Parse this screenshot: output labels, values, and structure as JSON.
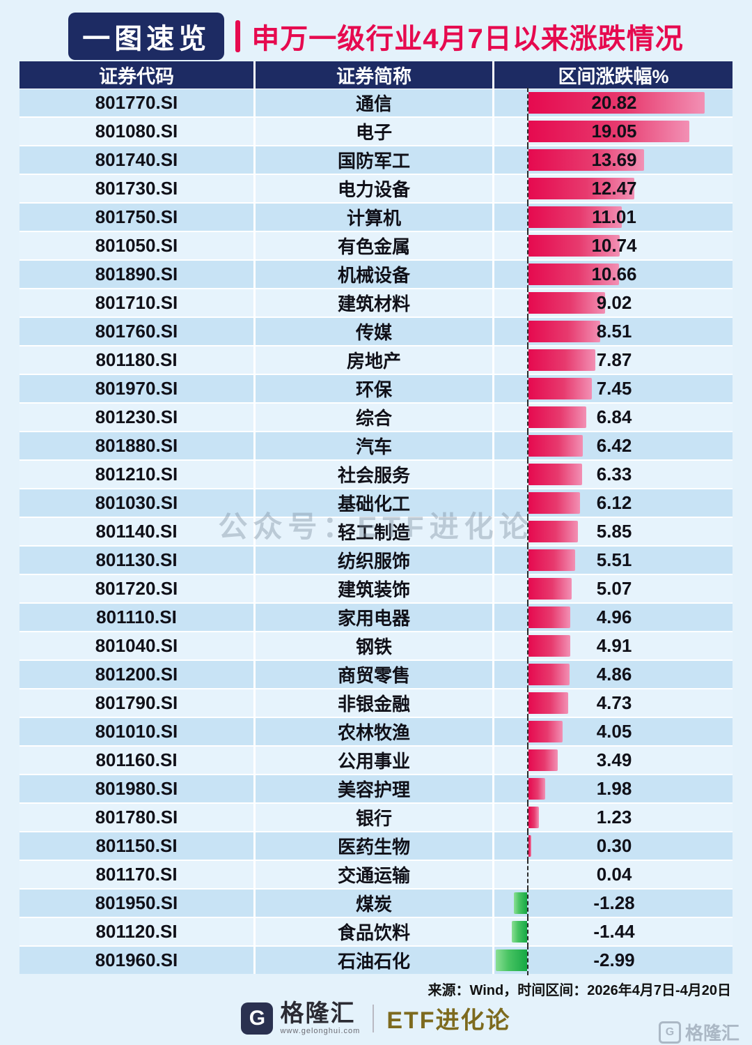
{
  "title": {
    "badge": "一图速览",
    "text": "申万一级行业4月7日以来涨跌情况"
  },
  "table": {
    "headers": [
      "证券代码",
      "证券简称",
      "区间涨跌幅%"
    ]
  },
  "chart_data": {
    "type": "bar",
    "title": "申万一级行业4月7日以来涨跌情况",
    "value_label": "区间涨跌幅%",
    "orientation": "horizontal",
    "xlim": [
      -2.99,
      20.82
    ],
    "positive_color": "#e60a4f",
    "negative_color": "#16a845",
    "rows": [
      {
        "code": "801770.SI",
        "name": "通信",
        "value": 20.82
      },
      {
        "code": "801080.SI",
        "name": "电子",
        "value": 19.05
      },
      {
        "code": "801740.SI",
        "name": "国防军工",
        "value": 13.69
      },
      {
        "code": "801730.SI",
        "name": "电力设备",
        "value": 12.47
      },
      {
        "code": "801750.SI",
        "name": "计算机",
        "value": 11.01
      },
      {
        "code": "801050.SI",
        "name": "有色金属",
        "value": 10.74
      },
      {
        "code": "801890.SI",
        "name": "机械设备",
        "value": 10.66
      },
      {
        "code": "801710.SI",
        "name": "建筑材料",
        "value": 9.02
      },
      {
        "code": "801760.SI",
        "name": "传媒",
        "value": 8.51
      },
      {
        "code": "801180.SI",
        "name": "房地产",
        "value": 7.87
      },
      {
        "code": "801970.SI",
        "name": "环保",
        "value": 7.45
      },
      {
        "code": "801230.SI",
        "name": "综合",
        "value": 6.84
      },
      {
        "code": "801880.SI",
        "name": "汽车",
        "value": 6.42
      },
      {
        "code": "801210.SI",
        "name": "社会服务",
        "value": 6.33
      },
      {
        "code": "801030.SI",
        "name": "基础化工",
        "value": 6.12
      },
      {
        "code": "801140.SI",
        "name": "轻工制造",
        "value": 5.85
      },
      {
        "code": "801130.SI",
        "name": "纺织服饰",
        "value": 5.51
      },
      {
        "code": "801720.SI",
        "name": "建筑装饰",
        "value": 5.07
      },
      {
        "code": "801110.SI",
        "name": "家用电器",
        "value": 4.96
      },
      {
        "code": "801040.SI",
        "name": "钢铁",
        "value": 4.91
      },
      {
        "code": "801200.SI",
        "name": "商贸零售",
        "value": 4.86
      },
      {
        "code": "801790.SI",
        "name": "非银金融",
        "value": 4.73
      },
      {
        "code": "801010.SI",
        "name": "农林牧渔",
        "value": 4.05
      },
      {
        "code": "801160.SI",
        "name": "公用事业",
        "value": 3.49
      },
      {
        "code": "801980.SI",
        "name": "美容护理",
        "value": 1.98
      },
      {
        "code": "801780.SI",
        "name": "银行",
        "value": 1.23
      },
      {
        "code": "801150.SI",
        "name": "医药生物",
        "value": 0.3
      },
      {
        "code": "801170.SI",
        "name": "交通运输",
        "value": 0.04
      },
      {
        "code": "801950.SI",
        "name": "煤炭",
        "value": -1.28
      },
      {
        "code": "801120.SI",
        "name": "食品饮料",
        "value": -1.44
      },
      {
        "code": "801960.SI",
        "name": "石油石化",
        "value": -2.99
      }
    ]
  },
  "watermark": "公众号：ETF进化论",
  "source": "来源：Wind，时间区间：2026年4月7日-4月20日",
  "footer": {
    "logo_letter": "G",
    "brand": "格隆汇",
    "brand_url": "www.gelonghui.com",
    "etf": "ETF进化论",
    "corner_logo_letter": "G",
    "corner_brand": "格隆汇"
  },
  "colors": {
    "header_bg": "#1d2b63",
    "accent_red": "#e60a4f",
    "row_dark": "#c8e3f5",
    "row_light": "#e6f3fc",
    "negative_green": "#16a845"
  }
}
